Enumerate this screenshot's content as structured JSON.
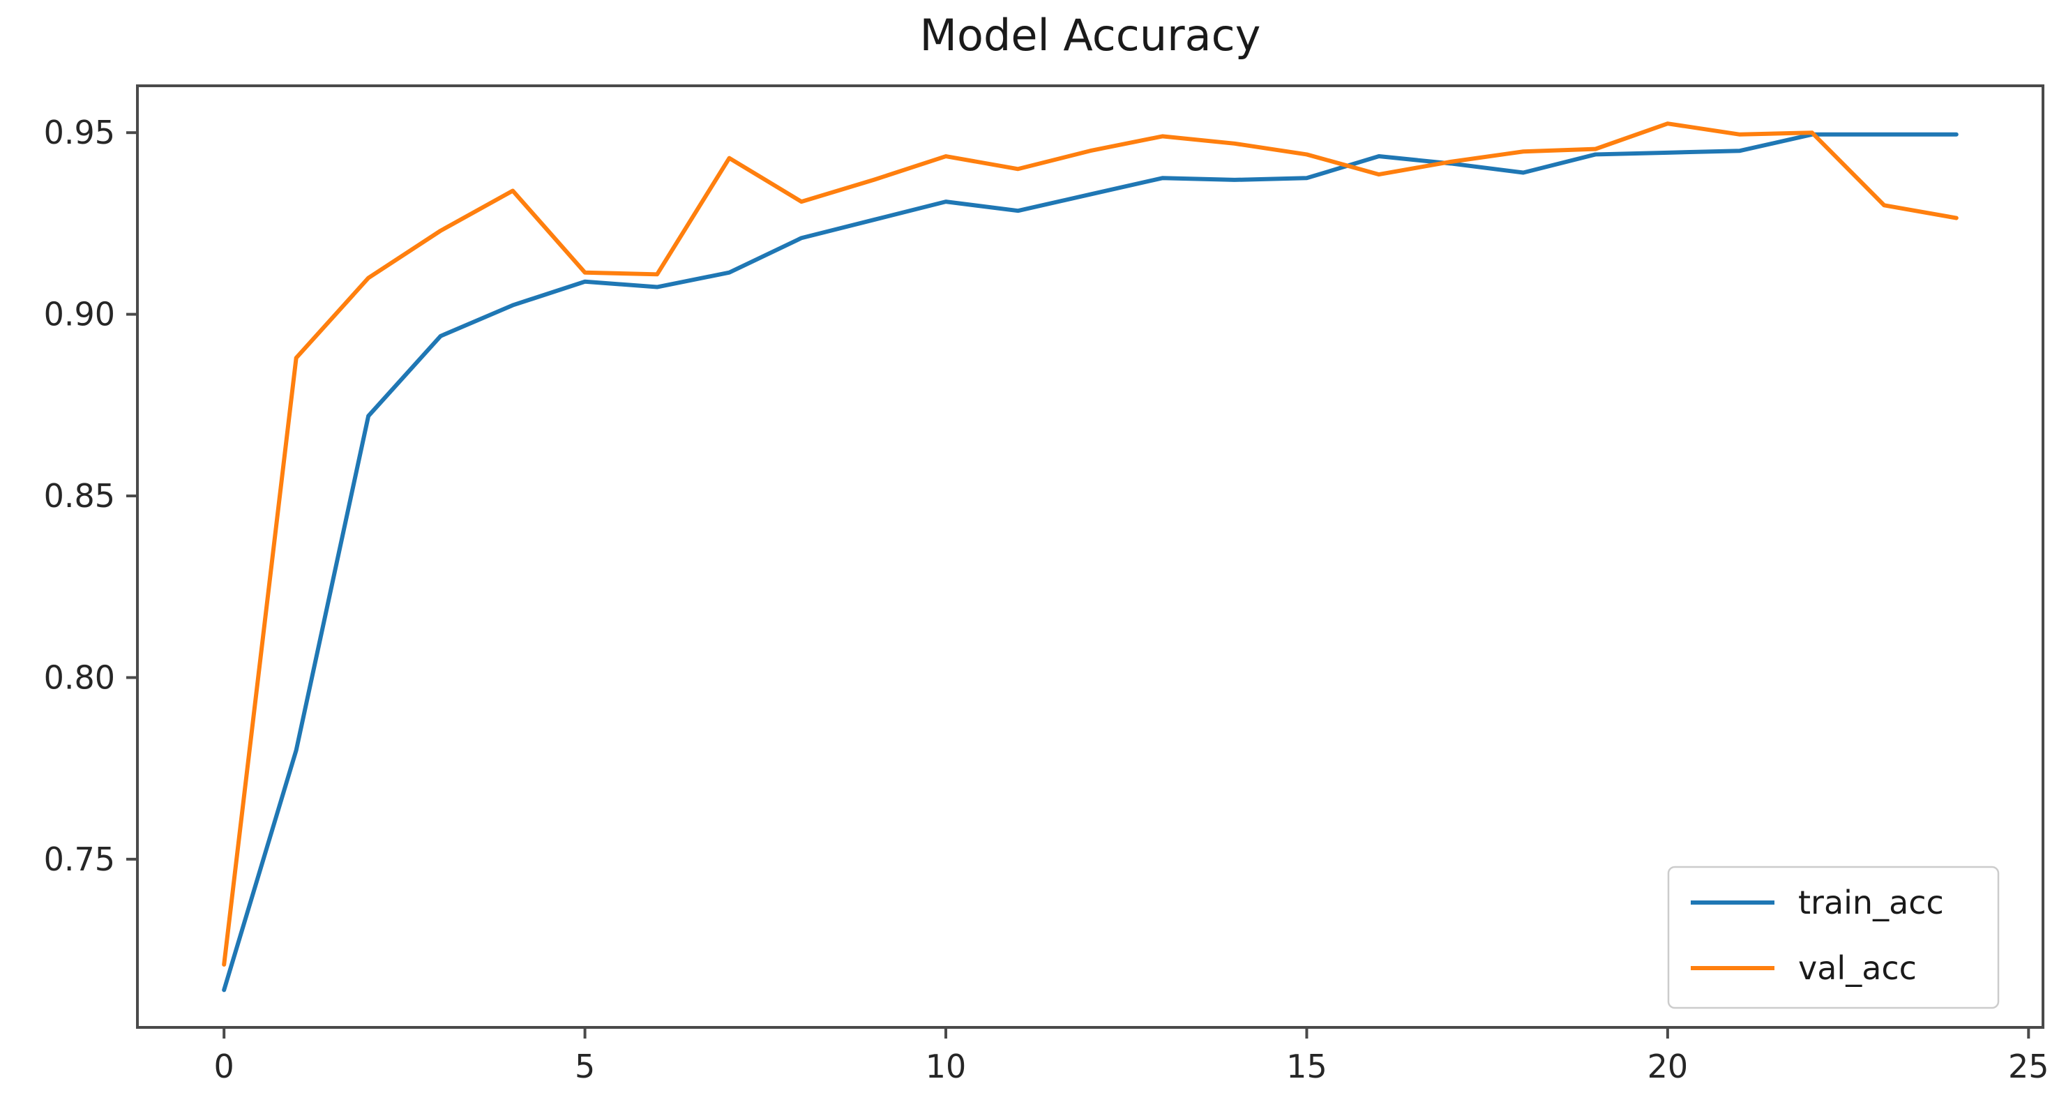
{
  "chart_data": {
    "type": "line",
    "title": "Model Accuracy",
    "xlabel": "",
    "ylabel": "",
    "x": [
      0,
      1,
      2,
      3,
      4,
      5,
      6,
      7,
      8,
      9,
      10,
      11,
      12,
      13,
      14,
      15,
      16,
      17,
      18,
      19,
      20,
      21,
      22,
      23,
      24
    ],
    "series": [
      {
        "name": "train_acc",
        "color": "#1f77b4",
        "values": [
          0.714,
          0.78,
          0.872,
          0.894,
          0.9025,
          0.909,
          0.9075,
          0.9115,
          0.921,
          0.926,
          0.931,
          0.9285,
          0.933,
          0.9375,
          0.937,
          0.9375,
          0.9435,
          0.9415,
          0.939,
          0.944,
          0.9445,
          0.945,
          0.9495,
          0.9495,
          0.9495
        ]
      },
      {
        "name": "val_acc",
        "color": "#ff7f0e",
        "values": [
          0.721,
          0.888,
          0.91,
          0.923,
          0.934,
          0.9115,
          0.911,
          0.943,
          0.931,
          0.937,
          0.9435,
          0.94,
          0.945,
          0.949,
          0.947,
          0.944,
          0.9385,
          0.942,
          0.9448,
          0.9455,
          0.9525,
          0.9495,
          0.95,
          0.93,
          0.9265
        ]
      }
    ],
    "x_ticks": [
      {
        "label": "0",
        "value": 0
      },
      {
        "label": "5",
        "value": 5
      },
      {
        "label": "10",
        "value": 10
      },
      {
        "label": "15",
        "value": 15
      },
      {
        "label": "20",
        "value": 20
      },
      {
        "label": "25",
        "value": 25
      }
    ],
    "y_ticks": [
      {
        "label": "0.75",
        "value": 0.75
      },
      {
        "label": "0.80",
        "value": 0.8
      },
      {
        "label": "0.85",
        "value": 0.85
      },
      {
        "label": "0.90",
        "value": 0.9
      },
      {
        "label": "0.95",
        "value": 0.95
      }
    ],
    "xlim": [
      -1.2,
      25.2
    ],
    "ylim": [
      0.7037,
      0.9629
    ],
    "grid": false,
    "legend_position": "lower right",
    "frame_color": "#4a4a4a",
    "background_color": "#ffffff"
  }
}
